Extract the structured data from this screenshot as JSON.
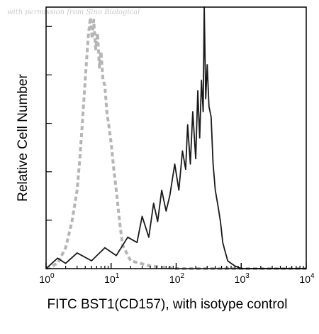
{
  "watermark": "with permission from Sino Biological",
  "chart_data": {
    "type": "line",
    "title": "",
    "xlabel": "FITC BST1(CD157), with isotype control",
    "ylabel": "Relative Cell Number",
    "x_scale": "log",
    "xlim": [
      1,
      10000
    ],
    "ylim": [
      0,
      100
    ],
    "x_ticks": [
      {
        "base": "10",
        "exp": "0",
        "value": 1
      },
      {
        "base": "10",
        "exp": "1",
        "value": 10
      },
      {
        "base": "10",
        "exp": "2",
        "value": 100
      },
      {
        "base": "10",
        "exp": "3",
        "value": 1000
      },
      {
        "base": "10",
        "exp": "4",
        "value": 10000
      }
    ],
    "grid": false,
    "legend": "none",
    "series": [
      {
        "role": "isotype control",
        "color": "#b5b5b5",
        "style": "dashed",
        "x": [
          1.0,
          1.5,
          2.0,
          2.5,
          3.0,
          3.3,
          3.6,
          3.9,
          4.2,
          4.5,
          4.8,
          5.1,
          5.4,
          5.8,
          6.2,
          6.6,
          7.0,
          7.5,
          8.0,
          8.6,
          9.2,
          10.0,
          11.0,
          12.0,
          13.5,
          15.0,
          20.0,
          40.0,
          100.0,
          1000.0,
          10000.0
        ],
        "y": [
          0,
          2,
          8,
          18,
          30,
          42,
          55,
          68,
          80,
          90,
          96,
          88,
          95,
          84,
          90,
          77,
          83,
          72,
          70,
          60,
          55,
          48,
          38,
          30,
          18,
          9,
          3,
          1,
          0,
          0,
          0
        ]
      },
      {
        "role": "FITC BST1(CD157)",
        "color": "#1a1a1a",
        "style": "solid",
        "x": [
          1.0,
          1.5,
          2.0,
          3.0,
          5.0,
          8.0,
          12.0,
          18.0,
          25.0,
          30.0,
          38.0,
          45.0,
          52.0,
          60.0,
          70.0,
          80.0,
          95.0,
          110.0,
          125.0,
          140.0,
          150.0,
          165.0,
          180.0,
          200.0,
          215.0,
          230.0,
          245.0,
          260.0,
          270.0,
          285.0,
          300.0,
          320.0,
          345.0,
          370.0,
          400.0,
          440.0,
          480.0,
          520.0,
          560.0,
          620.0,
          700.0,
          800.0,
          1000.0,
          3000.0,
          10000.0
        ],
        "y": [
          0,
          4,
          2,
          6,
          3,
          8,
          5,
          12,
          10,
          20,
          12,
          25,
          18,
          30,
          22,
          28,
          40,
          30,
          45,
          38,
          55,
          40,
          60,
          42,
          68,
          50,
          72,
          60,
          100,
          65,
          78,
          62,
          58,
          40,
          30,
          24,
          18,
          10,
          7,
          3,
          2,
          1,
          0,
          0,
          0
        ]
      }
    ]
  }
}
